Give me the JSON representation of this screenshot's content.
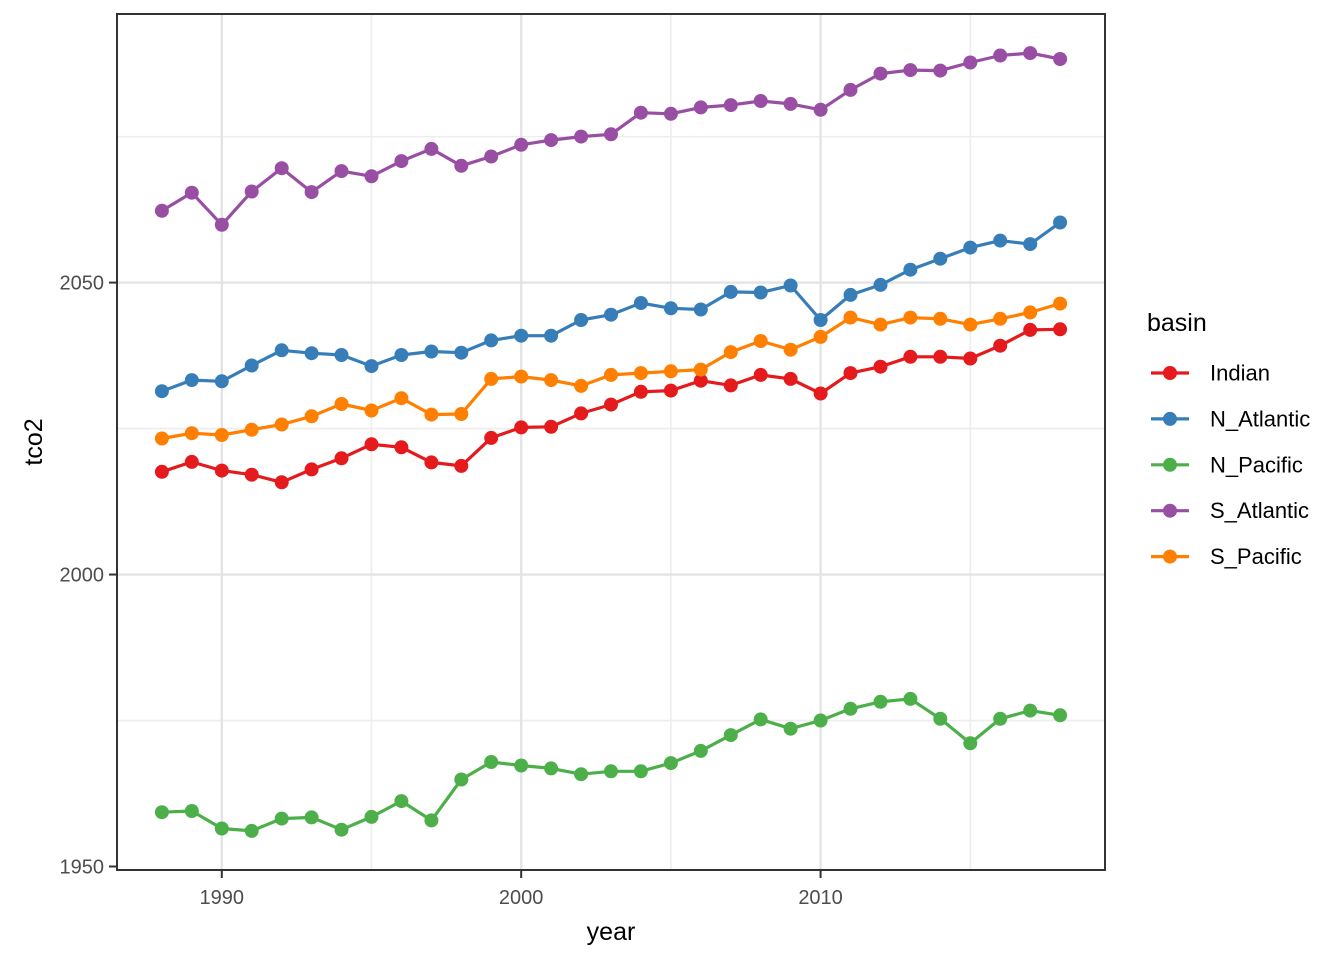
{
  "figure": {
    "xlabel": "year",
    "ylabel": "tco2",
    "legend_title": "basin"
  },
  "theme": {
    "background": "#FFFFFF",
    "panel_background": "#FFFFFF",
    "panel_border": "#333333",
    "grid_major": "#E4E4E4",
    "grid_minor": "#EDEDED",
    "tick_color": "#333333",
    "tick_label_color": "#4D4D4D",
    "axis_title_color": "#000000",
    "legend_text_color": "#000000"
  },
  "chart_data": {
    "type": "line",
    "title": "",
    "xlabel": "year",
    "ylabel": "tco2",
    "legend_title": "basin",
    "legend_position": "right",
    "grid": true,
    "point_markers": true,
    "xlim": [
      1986.5,
      2019.5
    ],
    "ylim": [
      1949.4,
      2096.0
    ],
    "x_ticks": [
      1990,
      2000,
      2010
    ],
    "x_minor_ticks": [
      1995,
      2005,
      2015
    ],
    "y_ticks": [
      1950,
      2000,
      2050
    ],
    "y_minor_ticks": [
      1975,
      2025,
      2075
    ],
    "x": [
      1988,
      1989,
      1990,
      1991,
      1992,
      1993,
      1994,
      1995,
      1996,
      1997,
      1998,
      1999,
      2000,
      2001,
      2002,
      2003,
      2004,
      2005,
      2006,
      2007,
      2008,
      2009,
      2010,
      2011,
      2012,
      2013,
      2014,
      2015,
      2016,
      2017,
      2018
    ],
    "series": [
      {
        "name": "Indian",
        "color": "#E41A1C",
        "values": [
          2017.6,
          2019.3,
          2017.8,
          2017.1,
          2015.8,
          2018.0,
          2019.9,
          2022.3,
          2021.8,
          2019.2,
          2018.6,
          2023.4,
          2025.2,
          2025.3,
          2027.6,
          2029.1,
          2031.3,
          2031.5,
          2033.2,
          2032.4,
          2034.2,
          2033.5,
          2031.0,
          2034.5,
          2035.6,
          2037.3,
          2037.3,
          2037.0,
          2039.2,
          2041.9,
          2042.0
        ]
      },
      {
        "name": "N_Atlantic",
        "color": "#377EB8",
        "values": [
          2031.4,
          2033.3,
          2033.1,
          2035.8,
          2038.4,
          2037.9,
          2037.6,
          2035.7,
          2037.6,
          2038.2,
          2038.0,
          2040.1,
          2040.9,
          2040.9,
          2043.6,
          2044.5,
          2046.5,
          2045.6,
          2045.4,
          2048.4,
          2048.3,
          2049.5,
          2043.6,
          2047.9,
          2049.6,
          2052.2,
          2054.1,
          2056.0,
          2057.2,
          2056.6,
          2060.3
        ]
      },
      {
        "name": "N_Pacific",
        "color": "#4DAF4A",
        "values": [
          1959.3,
          1959.5,
          1956.5,
          1956.1,
          1958.2,
          1958.4,
          1956.3,
          1958.5,
          1961.2,
          1957.9,
          1964.9,
          1967.9,
          1967.3,
          1966.8,
          1965.8,
          1966.3,
          1966.3,
          1967.7,
          1969.8,
          1972.5,
          1975.2,
          1973.6,
          1975.0,
          1977.0,
          1978.2,
          1978.7,
          1975.3,
          1971.1,
          1975.3,
          1976.7,
          1975.9
        ]
      },
      {
        "name": "S_Atlantic",
        "color": "#984EA3",
        "values": [
          2062.3,
          2065.4,
          2059.9,
          2065.6,
          2069.6,
          2065.5,
          2069.1,
          2068.2,
          2070.8,
          2072.9,
          2070.0,
          2071.6,
          2073.6,
          2074.4,
          2075.0,
          2075.4,
          2079.1,
          2078.9,
          2080.0,
          2080.4,
          2081.1,
          2080.6,
          2079.6,
          2083.0,
          2085.8,
          2086.4,
          2086.3,
          2087.7,
          2088.9,
          2089.3,
          2088.3
        ]
      },
      {
        "name": "S_Pacific",
        "color": "#FF7F00",
        "values": [
          2023.3,
          2024.2,
          2023.9,
          2024.8,
          2025.7,
          2027.1,
          2029.2,
          2028.1,
          2030.2,
          2027.4,
          2027.5,
          2033.5,
          2033.9,
          2033.3,
          2032.3,
          2034.2,
          2034.5,
          2034.8,
          2035.1,
          2038.1,
          2040.0,
          2038.5,
          2040.7,
          2044.0,
          2042.8,
          2044.0,
          2043.8,
          2042.8,
          2043.8,
          2044.9,
          2046.4
        ]
      }
    ]
  }
}
